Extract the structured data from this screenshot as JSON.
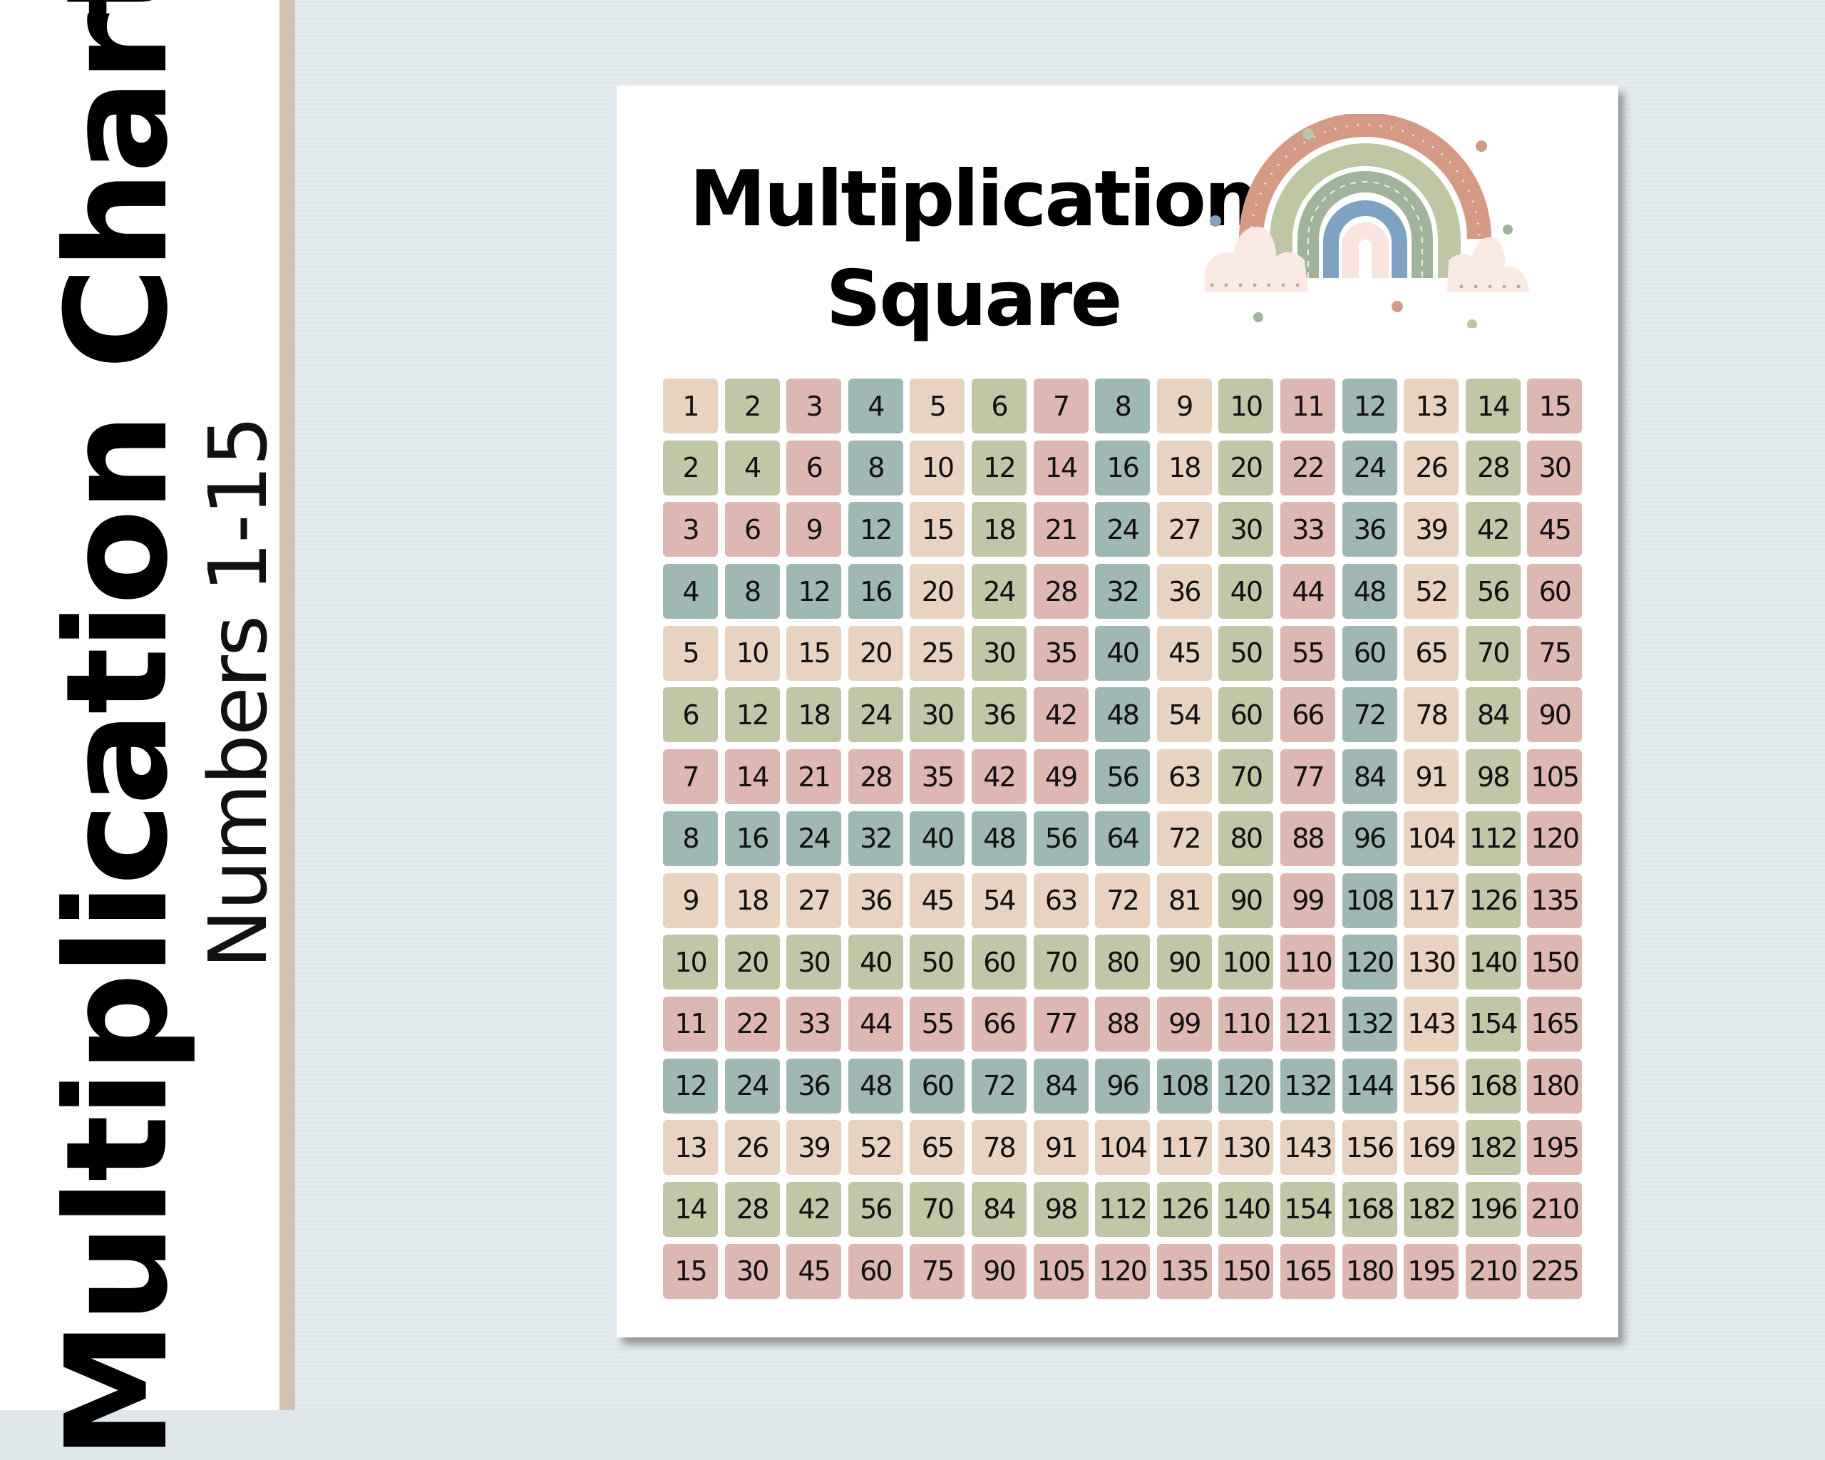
{
  "side_title": "Multiplication Chart",
  "side_subtitle": "Numbers 1-15",
  "title_lines": [
    "Multiplication",
    "Square"
  ],
  "colors": {
    "palette": [
      "#e8d3c1",
      "#c1c6a6",
      "#ddb8b2",
      "#9fb8b4"
    ],
    "background": "#dfe7eb",
    "stripe": "#d5c3b1"
  },
  "chart_data": {
    "type": "table",
    "title": "Multiplication Square",
    "color_rule": "band color by max(row,col) cycling peach, sage, pink, teal",
    "rows": [
      [
        1,
        2,
        3,
        4,
        5,
        6,
        7,
        8,
        9,
        10,
        11,
        12,
        13,
        14,
        15
      ],
      [
        2,
        4,
        6,
        8,
        10,
        12,
        14,
        16,
        18,
        20,
        22,
        24,
        26,
        28,
        30
      ],
      [
        3,
        6,
        9,
        12,
        15,
        18,
        21,
        24,
        27,
        30,
        33,
        36,
        39,
        42,
        45
      ],
      [
        4,
        8,
        12,
        16,
        20,
        24,
        28,
        32,
        36,
        40,
        44,
        48,
        52,
        56,
        60
      ],
      [
        5,
        10,
        15,
        20,
        25,
        30,
        35,
        40,
        45,
        50,
        55,
        60,
        65,
        70,
        75
      ],
      [
        6,
        12,
        18,
        24,
        30,
        36,
        42,
        48,
        54,
        60,
        66,
        72,
        78,
        84,
        90
      ],
      [
        7,
        14,
        21,
        28,
        35,
        42,
        49,
        56,
        63,
        70,
        77,
        84,
        91,
        98,
        105
      ],
      [
        8,
        16,
        24,
        32,
        40,
        48,
        56,
        64,
        72,
        80,
        88,
        96,
        104,
        112,
        120
      ],
      [
        9,
        18,
        27,
        36,
        45,
        54,
        63,
        72,
        81,
        90,
        99,
        108,
        117,
        126,
        135
      ],
      [
        10,
        20,
        30,
        40,
        50,
        60,
        70,
        80,
        90,
        100,
        110,
        120,
        130,
        140,
        150
      ],
      [
        11,
        22,
        33,
        44,
        55,
        66,
        77,
        88,
        99,
        110,
        121,
        132,
        143,
        154,
        165
      ],
      [
        12,
        24,
        36,
        48,
        60,
        72,
        84,
        96,
        108,
        120,
        132,
        144,
        156,
        168,
        180
      ],
      [
        13,
        26,
        39,
        52,
        65,
        78,
        91,
        104,
        117,
        130,
        143,
        156,
        169,
        182,
        195
      ],
      [
        14,
        28,
        42,
        56,
        70,
        84,
        98,
        112,
        126,
        140,
        154,
        168,
        182,
        196,
        210
      ],
      [
        15,
        30,
        45,
        60,
        75,
        90,
        105,
        120,
        135,
        150,
        165,
        180,
        195,
        210,
        225
      ]
    ]
  }
}
